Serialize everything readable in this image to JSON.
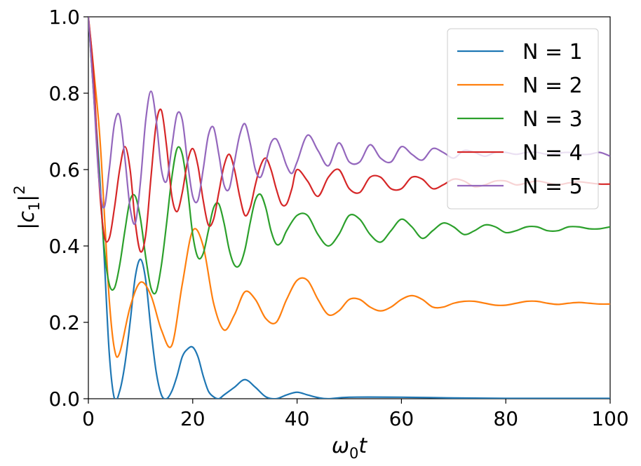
{
  "chart_data": {
    "type": "line",
    "xlabel": "ω0t",
    "ylabel": "|c1|²",
    "xlim": [
      0,
      100
    ],
    "ylim": [
      0.0,
      1.0
    ],
    "xticks": [
      "0",
      "20",
      "40",
      "60",
      "80",
      "100"
    ],
    "yticks": [
      "0.0",
      "0.2",
      "0.4",
      "0.6",
      "0.8",
      "1.0"
    ],
    "grid": false,
    "legend_position": "top-right",
    "series": [
      {
        "name": "N = 1",
        "color": "#1f77b4",
        "x": [
          0,
          2,
          3,
          4,
          5,
          6,
          7,
          8,
          9,
          10,
          11,
          12,
          13,
          14,
          15,
          16,
          17,
          18,
          19,
          20,
          21,
          22,
          23,
          24,
          25,
          26,
          28,
          30,
          32,
          34,
          36,
          38,
          40,
          42,
          44,
          46,
          50,
          60,
          70,
          80,
          90,
          100
        ],
        "y": [
          1.0,
          0.62,
          0.38,
          0.12,
          0.0,
          0.02,
          0.09,
          0.2,
          0.32,
          0.365,
          0.31,
          0.18,
          0.07,
          0.01,
          0.0,
          0.02,
          0.06,
          0.11,
          0.13,
          0.135,
          0.11,
          0.06,
          0.02,
          0.005,
          0.0,
          0.01,
          0.03,
          0.05,
          0.03,
          0.005,
          0.0,
          0.01,
          0.017,
          0.01,
          0.003,
          0.0,
          0.004,
          0.004,
          0.002,
          0.001,
          0.001,
          0.001
        ]
      },
      {
        "name": "N = 2",
        "color": "#ff7f0e",
        "x": [
          0,
          2,
          3,
          4,
          5,
          6,
          8,
          10,
          12,
          14,
          16,
          18,
          20,
          22,
          24,
          26,
          28,
          30,
          32,
          34,
          36,
          38,
          40,
          42,
          44,
          46,
          48,
          50,
          52,
          54,
          56,
          58,
          60,
          62,
          64,
          66,
          68,
          70,
          72,
          74,
          76,
          78,
          80,
          82,
          84,
          86,
          88,
          90,
          92,
          94,
          96,
          98,
          100
        ],
        "y": [
          1.0,
          0.72,
          0.5,
          0.26,
          0.13,
          0.12,
          0.24,
          0.305,
          0.27,
          0.18,
          0.14,
          0.3,
          0.44,
          0.4,
          0.25,
          0.18,
          0.22,
          0.28,
          0.26,
          0.21,
          0.2,
          0.26,
          0.31,
          0.31,
          0.26,
          0.22,
          0.23,
          0.26,
          0.26,
          0.24,
          0.23,
          0.24,
          0.26,
          0.27,
          0.26,
          0.24,
          0.24,
          0.25,
          0.255,
          0.255,
          0.25,
          0.245,
          0.245,
          0.25,
          0.255,
          0.255,
          0.25,
          0.247,
          0.25,
          0.252,
          0.25,
          0.248,
          0.248
        ]
      },
      {
        "name": "N = 3",
        "color": "#2ca02c",
        "x": [
          0,
          2,
          3,
          4,
          5,
          6,
          7,
          8,
          9,
          10,
          11,
          12,
          13,
          14,
          15,
          16,
          17,
          18,
          19,
          20,
          21,
          22,
          23,
          24,
          25,
          26,
          27,
          28,
          29,
          30,
          31,
          32,
          33,
          34,
          35,
          36,
          37,
          38,
          40,
          42,
          44,
          46,
          48,
          50,
          52,
          54,
          56,
          58,
          60,
          62,
          64,
          66,
          68,
          70,
          72,
          74,
          76,
          78,
          80,
          82,
          84,
          86,
          88,
          90,
          92,
          94,
          96,
          98,
          100
        ],
        "y": [
          1.0,
          0.6,
          0.4,
          0.3,
          0.29,
          0.35,
          0.44,
          0.52,
          0.53,
          0.47,
          0.37,
          0.29,
          0.28,
          0.35,
          0.46,
          0.58,
          0.655,
          0.64,
          0.55,
          0.43,
          0.37,
          0.38,
          0.44,
          0.5,
          0.51,
          0.46,
          0.39,
          0.35,
          0.35,
          0.39,
          0.46,
          0.52,
          0.535,
          0.5,
          0.44,
          0.405,
          0.41,
          0.44,
          0.48,
          0.48,
          0.43,
          0.4,
          0.43,
          0.48,
          0.47,
          0.43,
          0.41,
          0.44,
          0.47,
          0.45,
          0.42,
          0.44,
          0.46,
          0.45,
          0.43,
          0.44,
          0.455,
          0.45,
          0.435,
          0.44,
          0.45,
          0.45,
          0.44,
          0.44,
          0.45,
          0.45,
          0.445,
          0.445,
          0.45
        ]
      },
      {
        "name": "N = 4",
        "color": "#d62728",
        "x": [
          0,
          1,
          2,
          3,
          4,
          5,
          6,
          7,
          8,
          9,
          10,
          11,
          12,
          13,
          14,
          15,
          16,
          17,
          18,
          19,
          20,
          21,
          22,
          23,
          24,
          25,
          26,
          27,
          28,
          29,
          30,
          31,
          32,
          33,
          34,
          35,
          36,
          37,
          38,
          39,
          40,
          42,
          44,
          46,
          48,
          50,
          52,
          54,
          56,
          58,
          60,
          62,
          64,
          66,
          68,
          70,
          72,
          74,
          76,
          78,
          80,
          82,
          84,
          86,
          88,
          90,
          92,
          94,
          96,
          98,
          100
        ],
        "y": [
          1.0,
          0.85,
          0.58,
          0.43,
          0.42,
          0.5,
          0.6,
          0.66,
          0.6,
          0.46,
          0.385,
          0.43,
          0.58,
          0.72,
          0.755,
          0.66,
          0.53,
          0.49,
          0.54,
          0.62,
          0.655,
          0.61,
          0.52,
          0.455,
          0.47,
          0.54,
          0.61,
          0.64,
          0.6,
          0.53,
          0.48,
          0.5,
          0.56,
          0.61,
          0.63,
          0.6,
          0.55,
          0.51,
          0.51,
          0.55,
          0.6,
          0.57,
          0.53,
          0.58,
          0.6,
          0.55,
          0.54,
          0.58,
          0.58,
          0.55,
          0.55,
          0.58,
          0.575,
          0.55,
          0.56,
          0.575,
          0.57,
          0.555,
          0.56,
          0.57,
          0.57,
          0.56,
          0.565,
          0.57,
          0.565,
          0.56,
          0.565,
          0.568,
          0.565,
          0.562,
          0.562
        ]
      },
      {
        "name": "N = 5",
        "color": "#9467bd",
        "x": [
          0,
          1,
          2,
          3,
          4,
          5,
          6,
          7,
          8,
          9,
          10,
          11,
          12,
          13,
          14,
          15,
          16,
          17,
          18,
          19,
          20,
          21,
          22,
          23,
          24,
          25,
          26,
          27,
          28,
          29,
          30,
          31,
          32,
          33,
          34,
          35,
          36,
          37,
          38,
          39,
          40,
          42,
          44,
          46,
          48,
          50,
          52,
          54,
          56,
          58,
          60,
          62,
          64,
          66,
          68,
          70,
          72,
          74,
          76,
          78,
          80,
          82,
          84,
          86,
          88,
          90,
          92,
          94,
          96,
          98,
          100
        ],
        "y": [
          1.0,
          0.8,
          0.58,
          0.5,
          0.6,
          0.72,
          0.74,
          0.63,
          0.5,
          0.46,
          0.57,
          0.73,
          0.805,
          0.73,
          0.6,
          0.57,
          0.66,
          0.745,
          0.73,
          0.62,
          0.53,
          0.52,
          0.6,
          0.69,
          0.71,
          0.64,
          0.56,
          0.55,
          0.62,
          0.69,
          0.72,
          0.67,
          0.6,
          0.58,
          0.62,
          0.67,
          0.68,
          0.65,
          0.61,
          0.59,
          0.62,
          0.69,
          0.65,
          0.61,
          0.67,
          0.62,
          0.62,
          0.665,
          0.63,
          0.62,
          0.66,
          0.64,
          0.625,
          0.655,
          0.645,
          0.63,
          0.65,
          0.645,
          0.635,
          0.645,
          0.645,
          0.64,
          0.645,
          0.645,
          0.64,
          0.643,
          0.645,
          0.64,
          0.64,
          0.645,
          0.635
        ]
      }
    ]
  }
}
